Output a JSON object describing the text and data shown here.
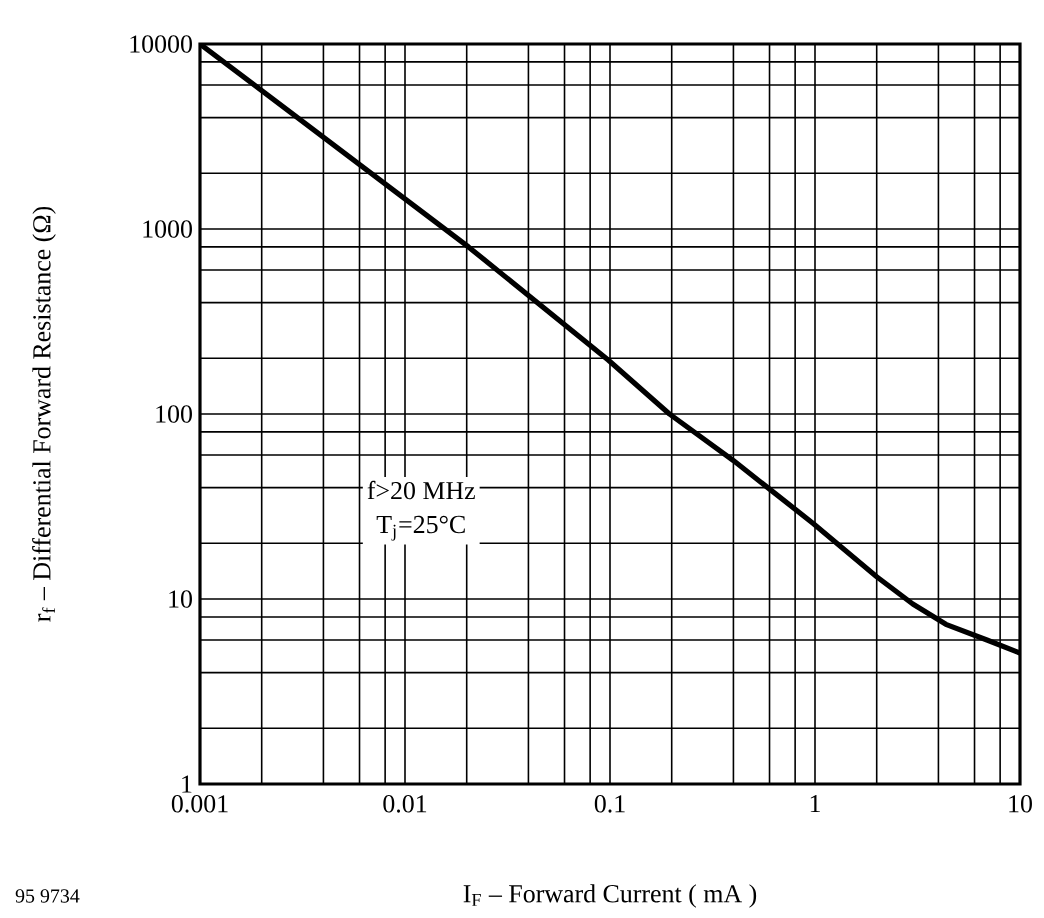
{
  "chart_data": {
    "type": "line",
    "xlabel": "I$_{F}$ – Forward Current ( mA )",
    "ylabel": "r$_{f}$ – Differential Forward Resistance (Ω)",
    "annotations": [
      "f>20 MHz",
      "T$_{j}$=25°C",
      "95 9734"
    ],
    "log": "xy",
    "grid": true,
    "marker": "none",
    "line_style": "solid",
    "xlim": [
      0.001,
      10
    ],
    "ylim": [
      1,
      10000
    ],
    "xticks": [
      0.001,
      0.01,
      0.1,
      1,
      10
    ],
    "yticks": [
      1,
      10,
      100,
      1000,
      10000
    ],
    "series": [
      {
        "color": "#000000",
        "x": [
          0.001,
          0.0204,
          0.098,
          0.195,
          0.4,
          0.98,
          2.0,
          3.0,
          4.35,
          6.9,
          9.6,
          10
        ],
        "values": [
          10000,
          800,
          196,
          100,
          56,
          25.6,
          13.2,
          9.4,
          7.3,
          6.0,
          5.2,
          5.1
        ]
      }
    ]
  }
}
